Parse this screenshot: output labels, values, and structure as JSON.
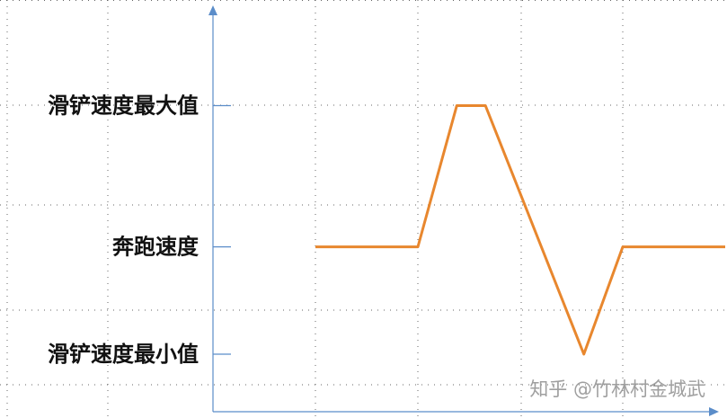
{
  "chart_data": {
    "type": "line",
    "title": "",
    "xlabel": "",
    "ylabel": "",
    "ylim": [
      0,
      100
    ],
    "grid": true,
    "y_labels": [
      {
        "text": "滑铲速度最大值",
        "value": 100
      },
      {
        "text": "奔跑速度",
        "value": 50
      },
      {
        "text": "滑铲速度最小值",
        "value": 12
      }
    ],
    "series": [
      {
        "color": "#E8872E",
        "points": [
          {
            "x": 1.0,
            "y": 50
          },
          {
            "x": 2.0,
            "y": 50
          },
          {
            "x": 2.38,
            "y": 100
          },
          {
            "x": 2.66,
            "y": 100
          },
          {
            "x": 3.62,
            "y": 12
          },
          {
            "x": 4.0,
            "y": 50
          },
          {
            "x": 5.0,
            "y": 50
          }
        ]
      }
    ]
  },
  "axis_color": "#5B8DC9",
  "grid_color": "#666666",
  "watermark": "知乎 @竹林村金城武"
}
